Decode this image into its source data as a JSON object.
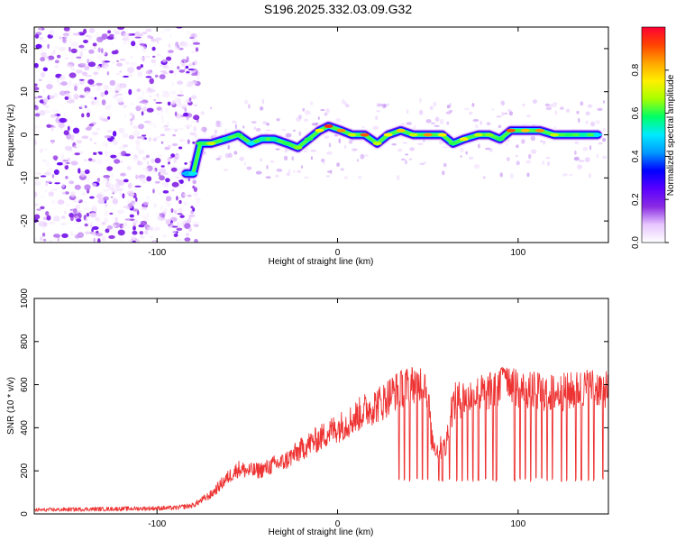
{
  "figure_title": "S196.2025.332.03.09.G32",
  "colors": {
    "frame": "#000000",
    "snr_line": "#ee3333",
    "colorbar_stops": [
      "#ffffff",
      "#e7c6ff",
      "#8a2be2",
      "#5a00ff",
      "#0000ff",
      "#0099ff",
      "#00eaff",
      "#00ff66",
      "#a8ff00",
      "#fff000",
      "#ffa500",
      "#ff4400",
      "#ff0033"
    ]
  },
  "chart_data": [
    {
      "type": "heatmap",
      "title": "S196.2025.332.03.09.G32",
      "xlabel": "Height of straight line (km)",
      "ylabel": "Frequency (Hz)",
      "xlim": [
        -168,
        150
      ],
      "ylim": [
        -25,
        25
      ],
      "xticks": [
        -100,
        0,
        100
      ],
      "yticks": [
        -20,
        -10,
        0,
        10,
        20
      ],
      "colorbar": {
        "label": "Normalized spectral amplitude",
        "range": [
          0,
          1
        ],
        "ticks": [
          "0.0",
          "0.2",
          "0.4",
          "0.6",
          "0.8"
        ]
      },
      "noise_region_x": [
        -168,
        -77
      ],
      "ridge": {
        "description": "dominant frequency track",
        "points": [
          [
            -84,
            -9,
            0.45
          ],
          [
            -80,
            -9,
            0.5
          ],
          [
            -76,
            -2,
            0.6
          ],
          [
            -70,
            -2,
            0.7
          ],
          [
            -62,
            -1,
            0.55
          ],
          [
            -55,
            0,
            0.6
          ],
          [
            -48,
            -2,
            0.5
          ],
          [
            -42,
            -1,
            0.55
          ],
          [
            -35,
            -1,
            0.55
          ],
          [
            -28,
            -2,
            0.6
          ],
          [
            -22,
            -3,
            0.65
          ],
          [
            -16,
            -1,
            0.6
          ],
          [
            -10,
            1,
            0.75
          ],
          [
            -5,
            2,
            0.95
          ],
          [
            2,
            1,
            0.85
          ],
          [
            8,
            0,
            0.7
          ],
          [
            15,
            0,
            0.9
          ],
          [
            22,
            -2,
            0.7
          ],
          [
            28,
            0,
            0.75
          ],
          [
            35,
            1,
            0.8
          ],
          [
            42,
            0,
            0.7
          ],
          [
            50,
            0,
            0.85
          ],
          [
            58,
            0,
            0.75
          ],
          [
            64,
            -2,
            0.6
          ],
          [
            70,
            -1,
            0.75
          ],
          [
            78,
            0,
            0.7
          ],
          [
            84,
            0,
            0.65
          ],
          [
            90,
            -1,
            0.6
          ],
          [
            96,
            1,
            0.9
          ],
          [
            104,
            1,
            0.8
          ],
          [
            112,
            1,
            0.85
          ],
          [
            120,
            0,
            0.7
          ],
          [
            128,
            0,
            0.6
          ],
          [
            136,
            0,
            0.55
          ],
          [
            144,
            0,
            0.5
          ]
        ]
      }
    },
    {
      "type": "line",
      "xlabel": "Height of straight line (km)",
      "ylabel": "SNR (10 * v/v)",
      "xlim": [
        -168,
        150
      ],
      "ylim": [
        0,
        1000
      ],
      "xticks": [
        -100,
        0,
        100
      ],
      "yticks": [
        0,
        200,
        400,
        600,
        800,
        1000
      ],
      "series": [
        {
          "name": "SNR",
          "x": [
            -168,
            -140,
            -110,
            -90,
            -80,
            -70,
            -62,
            -55,
            -50,
            -45,
            -40,
            -35,
            -30,
            -25,
            -20,
            -15,
            -10,
            -5,
            0,
            5,
            10,
            15,
            20,
            25,
            30,
            35,
            40,
            45,
            48,
            50,
            52,
            55,
            58,
            60,
            62,
            65,
            70,
            80,
            90,
            92,
            95,
            100,
            110,
            120,
            130,
            140,
            150
          ],
          "values": [
            18,
            22,
            25,
            28,
            40,
            90,
            160,
            210,
            200,
            200,
            210,
            230,
            240,
            270,
            300,
            330,
            350,
            380,
            400,
            420,
            450,
            480,
            500,
            520,
            560,
            580,
            600,
            610,
            620,
            560,
            350,
            300,
            310,
            300,
            460,
            520,
            540,
            560,
            580,
            700,
            620,
            580,
            570,
            560,
            570,
            590,
            580
          ]
        }
      ],
      "dropouts_x": [
        34,
        37,
        40,
        44,
        47,
        50,
        56,
        58,
        62,
        66,
        69,
        72,
        75,
        78,
        82,
        86,
        88,
        98,
        101,
        104,
        107,
        110,
        113,
        116,
        119,
        124,
        127,
        132,
        135,
        139,
        142,
        147
      ],
      "dropout_value": 150
    }
  ]
}
